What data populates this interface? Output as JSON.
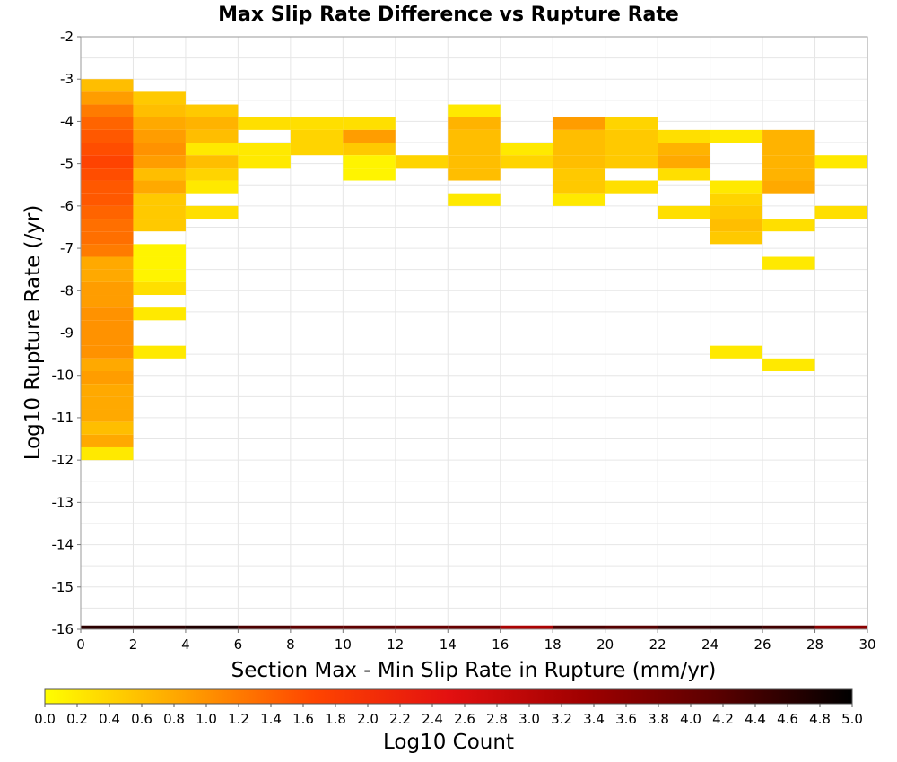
{
  "chart_data": {
    "type": "heatmap",
    "title": "Max Slip Rate Difference vs Rupture Rate",
    "xlabel": "Section Max - Min Slip Rate in Rupture (mm/yr)",
    "ylabel": "Log10 Rupture Rate (/yr)",
    "xlim": [
      0,
      30
    ],
    "ylim": [
      -16,
      -2
    ],
    "x_ticks": [
      "0",
      "2",
      "4",
      "6",
      "8",
      "10",
      "12",
      "14",
      "16",
      "18",
      "20",
      "22",
      "24",
      "26",
      "28",
      "30"
    ],
    "y_ticks": [
      "-2",
      "-3",
      "-4",
      "-5",
      "-6",
      "-7",
      "-8",
      "-9",
      "-10",
      "-11",
      "-12",
      "-13",
      "-14",
      "-15",
      "-16"
    ],
    "grid": true,
    "colorbar": {
      "label": "Log10 Count",
      "range": [
        0,
        5
      ],
      "colors": [
        "#ffff00",
        "#ffa500",
        "#ff4500",
        "#e31010",
        "#a00000",
        "#5a0000",
        "#000000"
      ],
      "ticks": [
        "0.0",
        "0.2",
        "0.4",
        "0.6",
        "0.8",
        "1.0",
        "1.2",
        "1.4",
        "1.6",
        "1.8",
        "2.0",
        "2.2",
        "2.4",
        "2.6",
        "2.8",
        "3.0",
        "3.2",
        "3.4",
        "3.6",
        "3.8",
        "4.0",
        "4.2",
        "4.4",
        "4.6",
        "4.8",
        "5.0"
      ]
    },
    "bin_width_x": 2,
    "bin_height_y": 0.3,
    "cells": [
      {
        "x": 0,
        "y": -3.15,
        "v": 0.6
      },
      {
        "x": 0,
        "y": -3.45,
        "v": 0.9
      },
      {
        "x": 0,
        "y": -3.75,
        "v": 1.2
      },
      {
        "x": 0,
        "y": -4.05,
        "v": 1.4
      },
      {
        "x": 0,
        "y": -4.35,
        "v": 1.5
      },
      {
        "x": 0,
        "y": -4.65,
        "v": 1.6
      },
      {
        "x": 0,
        "y": -4.95,
        "v": 1.7
      },
      {
        "x": 0,
        "y": -5.25,
        "v": 1.6
      },
      {
        "x": 0,
        "y": -5.55,
        "v": 1.5
      },
      {
        "x": 0,
        "y": -5.85,
        "v": 1.5
      },
      {
        "x": 0,
        "y": -6.15,
        "v": 1.4
      },
      {
        "x": 0,
        "y": -6.45,
        "v": 1.3
      },
      {
        "x": 0,
        "y": -6.75,
        "v": 1.3
      },
      {
        "x": 0,
        "y": -7.05,
        "v": 1.2
      },
      {
        "x": 0,
        "y": -7.35,
        "v": 0.8
      },
      {
        "x": 0,
        "y": -7.65,
        "v": 0.8
      },
      {
        "x": 0,
        "y": -7.95,
        "v": 0.9
      },
      {
        "x": 0,
        "y": -8.25,
        "v": 0.9
      },
      {
        "x": 0,
        "y": -8.55,
        "v": 1.0
      },
      {
        "x": 0,
        "y": -8.85,
        "v": 1.0
      },
      {
        "x": 0,
        "y": -9.15,
        "v": 1.0
      },
      {
        "x": 0,
        "y": -9.45,
        "v": 1.0
      },
      {
        "x": 0,
        "y": -9.75,
        "v": 0.8
      },
      {
        "x": 0,
        "y": -10.05,
        "v": 0.9
      },
      {
        "x": 0,
        "y": -10.35,
        "v": 0.8
      },
      {
        "x": 0,
        "y": -10.65,
        "v": 0.8
      },
      {
        "x": 0,
        "y": -10.95,
        "v": 0.8
      },
      {
        "x": 0,
        "y": -11.25,
        "v": 0.6
      },
      {
        "x": 0,
        "y": -11.55,
        "v": 0.8
      },
      {
        "x": 0,
        "y": -11.85,
        "v": 0.2
      },
      {
        "x": 2,
        "y": -3.45,
        "v": 0.5
      },
      {
        "x": 2,
        "y": -3.75,
        "v": 0.6
      },
      {
        "x": 2,
        "y": -4.05,
        "v": 0.8
      },
      {
        "x": 2,
        "y": -4.35,
        "v": 0.9
      },
      {
        "x": 2,
        "y": -4.65,
        "v": 1.0
      },
      {
        "x": 2,
        "y": -4.95,
        "v": 0.9
      },
      {
        "x": 2,
        "y": -5.25,
        "v": 0.6
      },
      {
        "x": 2,
        "y": -5.55,
        "v": 0.8
      },
      {
        "x": 2,
        "y": -5.85,
        "v": 0.5
      },
      {
        "x": 2,
        "y": -6.15,
        "v": 0.5
      },
      {
        "x": 2,
        "y": -6.45,
        "v": 0.5
      },
      {
        "x": 2,
        "y": -7.05,
        "v": 0.1
      },
      {
        "x": 2,
        "y": -7.35,
        "v": 0.1
      },
      {
        "x": 2,
        "y": -7.65,
        "v": 0.1
      },
      {
        "x": 2,
        "y": -7.95,
        "v": 0.3
      },
      {
        "x": 2,
        "y": -8.55,
        "v": 0.2
      },
      {
        "x": 2,
        "y": -9.45,
        "v": 0.2
      },
      {
        "x": 4,
        "y": -3.75,
        "v": 0.5
      },
      {
        "x": 4,
        "y": -4.05,
        "v": 0.7
      },
      {
        "x": 4,
        "y": -4.35,
        "v": 0.6
      },
      {
        "x": 4,
        "y": -4.65,
        "v": 0.2
      },
      {
        "x": 4,
        "y": -4.95,
        "v": 0.6
      },
      {
        "x": 4,
        "y": -5.25,
        "v": 0.4
      },
      {
        "x": 4,
        "y": -5.55,
        "v": 0.2
      },
      {
        "x": 4,
        "y": -6.15,
        "v": 0.3
      },
      {
        "x": 6,
        "y": -4.05,
        "v": 0.3
      },
      {
        "x": 6,
        "y": -4.65,
        "v": 0.2
      },
      {
        "x": 6,
        "y": -4.95,
        "v": 0.2
      },
      {
        "x": 8,
        "y": -4.05,
        "v": 0.3
      },
      {
        "x": 8,
        "y": -4.35,
        "v": 0.4
      },
      {
        "x": 8,
        "y": -4.65,
        "v": 0.4
      },
      {
        "x": 10,
        "y": -4.05,
        "v": 0.3
      },
      {
        "x": 10,
        "y": -4.35,
        "v": 0.9
      },
      {
        "x": 10,
        "y": -4.65,
        "v": 0.5
      },
      {
        "x": 10,
        "y": -4.95,
        "v": 0.1
      },
      {
        "x": 10,
        "y": -5.25,
        "v": 0.1
      },
      {
        "x": 12,
        "y": -4.95,
        "v": 0.4
      },
      {
        "x": 14,
        "y": -3.75,
        "v": 0.2
      },
      {
        "x": 14,
        "y": -4.05,
        "v": 0.7
      },
      {
        "x": 14,
        "y": -4.35,
        "v": 0.6
      },
      {
        "x": 14,
        "y": -4.65,
        "v": 0.6
      },
      {
        "x": 14,
        "y": -4.95,
        "v": 0.6
      },
      {
        "x": 14,
        "y": -5.25,
        "v": 0.6
      },
      {
        "x": 14,
        "y": -5.85,
        "v": 0.2
      },
      {
        "x": 16,
        "y": -4.65,
        "v": 0.2
      },
      {
        "x": 16,
        "y": -4.95,
        "v": 0.4
      },
      {
        "x": 18,
        "y": -4.05,
        "v": 0.9
      },
      {
        "x": 18,
        "y": -4.35,
        "v": 0.6
      },
      {
        "x": 18,
        "y": -4.65,
        "v": 0.6
      },
      {
        "x": 18,
        "y": -4.95,
        "v": 0.6
      },
      {
        "x": 18,
        "y": -5.25,
        "v": 0.5
      },
      {
        "x": 18,
        "y": -5.55,
        "v": 0.5
      },
      {
        "x": 18,
        "y": -5.85,
        "v": 0.2
      },
      {
        "x": 20,
        "y": -4.05,
        "v": 0.4
      },
      {
        "x": 20,
        "y": -4.35,
        "v": 0.5
      },
      {
        "x": 20,
        "y": -4.65,
        "v": 0.5
      },
      {
        "x": 20,
        "y": -4.95,
        "v": 0.5
      },
      {
        "x": 20,
        "y": -5.55,
        "v": 0.3
      },
      {
        "x": 22,
        "y": -4.35,
        "v": 0.3
      },
      {
        "x": 22,
        "y": -4.65,
        "v": 0.7
      },
      {
        "x": 22,
        "y": -4.95,
        "v": 0.8
      },
      {
        "x": 22,
        "y": -5.25,
        "v": 0.3
      },
      {
        "x": 22,
        "y": -6.15,
        "v": 0.3
      },
      {
        "x": 24,
        "y": -4.35,
        "v": 0.2
      },
      {
        "x": 24,
        "y": -5.55,
        "v": 0.2
      },
      {
        "x": 24,
        "y": -5.85,
        "v": 0.4
      },
      {
        "x": 24,
        "y": -6.15,
        "v": 0.5
      },
      {
        "x": 24,
        "y": -6.45,
        "v": 0.6
      },
      {
        "x": 24,
        "y": -6.75,
        "v": 0.5
      },
      {
        "x": 24,
        "y": -9.45,
        "v": 0.2
      },
      {
        "x": 26,
        "y": -4.35,
        "v": 0.7
      },
      {
        "x": 26,
        "y": -4.65,
        "v": 0.7
      },
      {
        "x": 26,
        "y": -4.95,
        "v": 0.7
      },
      {
        "x": 26,
        "y": -5.25,
        "v": 0.7
      },
      {
        "x": 26,
        "y": -5.55,
        "v": 0.8
      },
      {
        "x": 26,
        "y": -6.45,
        "v": 0.3
      },
      {
        "x": 26,
        "y": -7.35,
        "v": 0.2
      },
      {
        "x": 26,
        "y": -9.75,
        "v": 0.2
      },
      {
        "x": 28,
        "y": -4.95,
        "v": 0.2
      },
      {
        "x": 28,
        "y": -6.15,
        "v": 0.3
      }
    ],
    "bottom_strip": {
      "y": -16,
      "values": [
        4.6,
        4.6,
        4.7,
        4.3,
        4.1,
        4.1,
        4.0,
        4.0,
        3.2,
        4.3,
        4.2,
        4.5,
        4.6,
        4.4,
        3.6
      ]
    }
  }
}
